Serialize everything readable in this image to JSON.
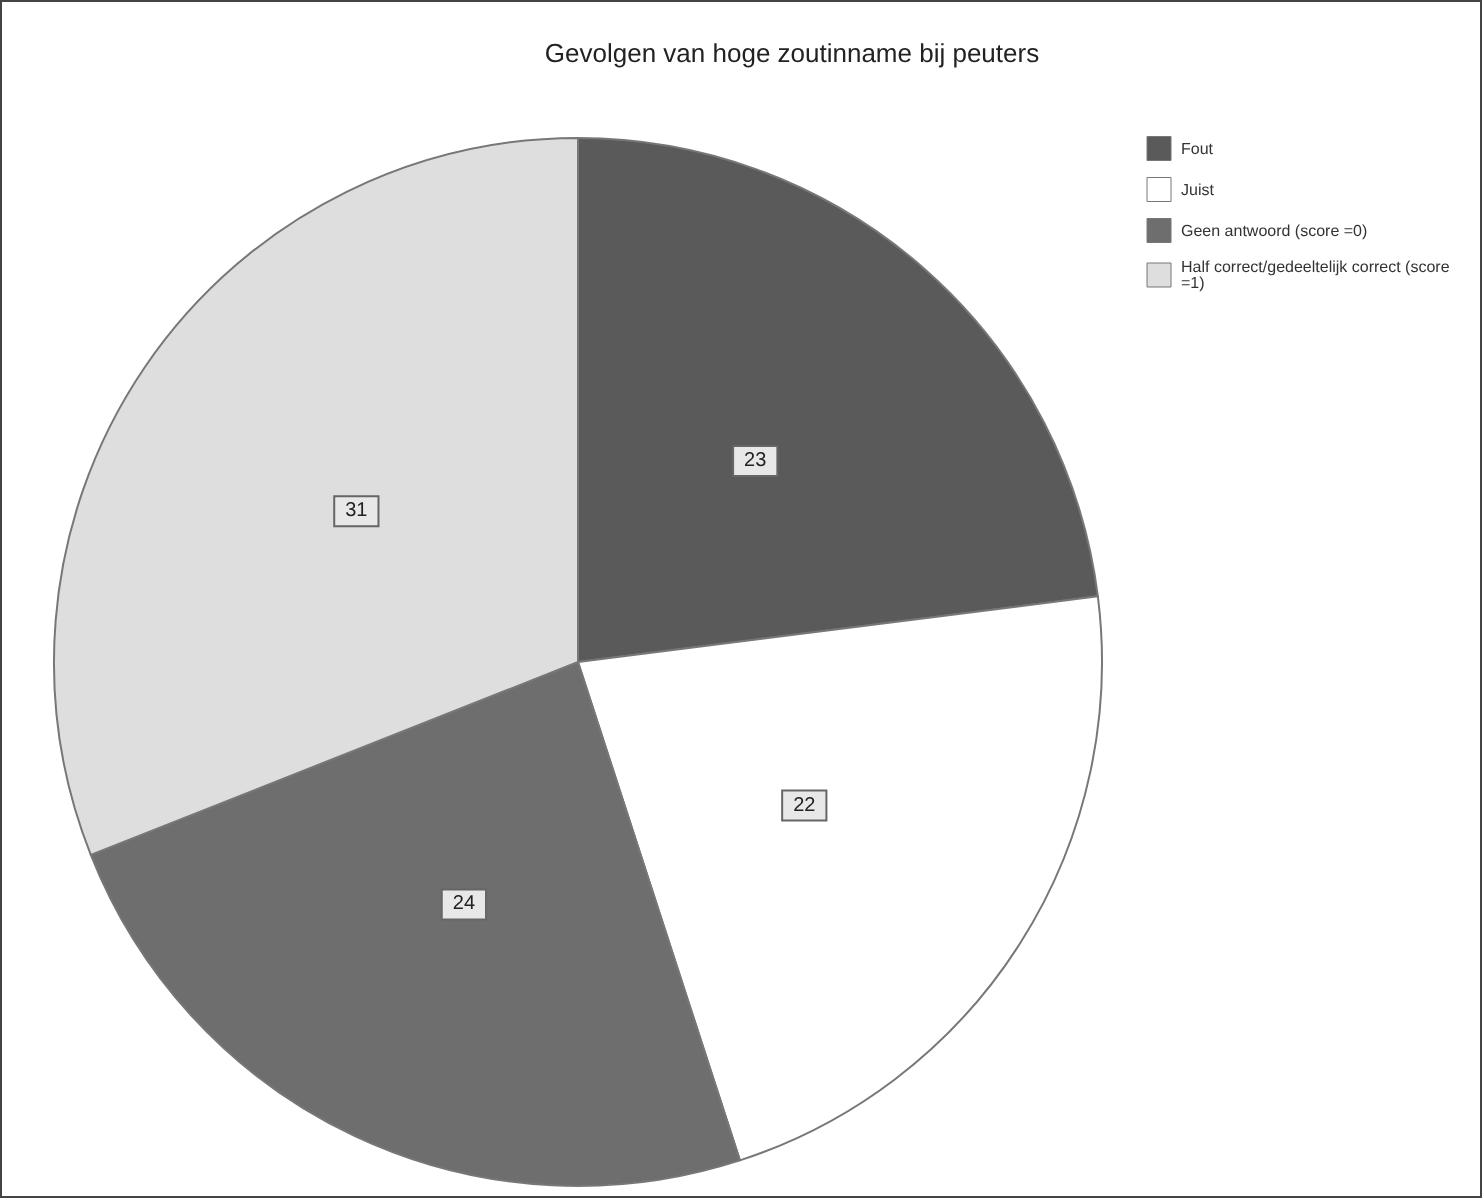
{
  "chart_data": {
    "type": "pie",
    "title": "Gevolgen van hoge zoutinname bij peuters",
    "categories": [
      "Fout",
      "Juist",
      "Geen antwoord (score =0)",
      "Half correct/gedeeltelijk correct (score =1)"
    ],
    "values": [
      23,
      22,
      24,
      31
    ],
    "colors": [
      "#5a5a5a",
      "#ffffff",
      "#6e6e6e",
      "#dedede"
    ],
    "data_labels": true,
    "legend": "top right"
  }
}
